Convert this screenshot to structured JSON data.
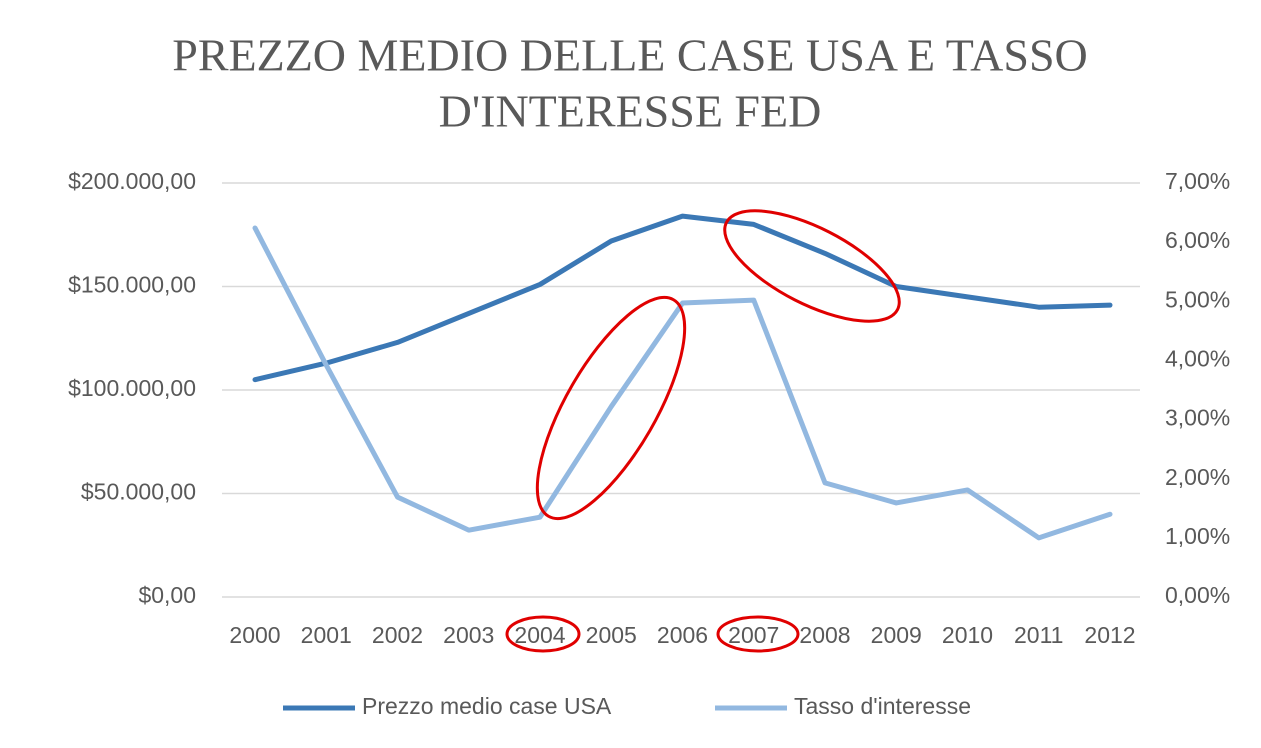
{
  "chart_data": {
    "type": "line",
    "title": [
      "PREZZO MEDIO DELLE CASE USA E TASSO",
      "D'INTERESSE FED"
    ],
    "categories": [
      "2000",
      "2001",
      "2002",
      "2003",
      "2004",
      "2005",
      "2006",
      "2007",
      "2008",
      "2009",
      "2010",
      "2011",
      "2012"
    ],
    "series": [
      {
        "name": "Prezzo medio case USA",
        "color": "#3b78b5",
        "values": [
          105000,
          113000,
          123000,
          137000,
          151000,
          172000,
          184000,
          180000,
          166000,
          150000,
          145000,
          140000,
          141000
        ]
      },
      {
        "name": "Tasso d'interesse",
        "color": "#92b8e0",
        "axis": "y2",
        "values": [
          6.24,
          3.92,
          1.69,
          1.13,
          1.35,
          3.22,
          4.97,
          5.02,
          1.93,
          1.59,
          1.81,
          1.0,
          1.4
        ]
      }
    ],
    "ylim": [
      0,
      200000
    ],
    "yticks": [
      {
        "value": 0,
        "label": "$0,00"
      },
      {
        "value": 50000,
        "label": "$50.000,00"
      },
      {
        "value": 100000,
        "label": "$100.000,00"
      },
      {
        "value": 150000,
        "label": "$150.000,00"
      },
      {
        "value": 200000,
        "label": "$200.000,00"
      }
    ],
    "y2lim": [
      0,
      7
    ],
    "y2ticks": [
      {
        "value": 0,
        "label": "0,00%"
      },
      {
        "value": 1,
        "label": "1,00%"
      },
      {
        "value": 2,
        "label": "2,00%"
      },
      {
        "value": 3,
        "label": "3,00%"
      },
      {
        "value": 4,
        "label": "4,00%"
      },
      {
        "value": 5,
        "label": "5,00%"
      },
      {
        "value": 6,
        "label": "6,00%"
      },
      {
        "value": 7,
        "label": "7,00%"
      }
    ],
    "grid": true,
    "legend": "bottom"
  }
}
